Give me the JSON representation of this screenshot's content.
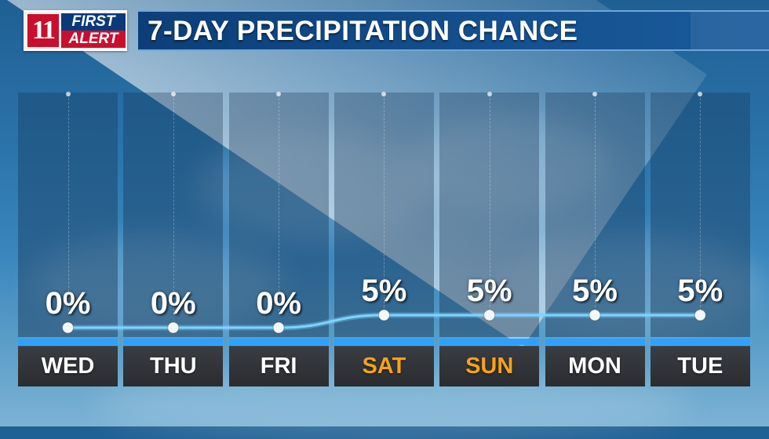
{
  "header": {
    "logo_channel": "11",
    "logo_line1": "FIRST",
    "logo_line2": "ALERT",
    "title": "7-DAY PRECIPITATION CHANCE"
  },
  "colors": {
    "weekday": "#ffffff",
    "weekend": "#f7a21b",
    "line": "#7fd3ff",
    "strip": "#2ea0ff"
  },
  "chart_data": {
    "type": "line",
    "categories": [
      "WED",
      "THU",
      "FRI",
      "SAT",
      "SUN",
      "MON",
      "TUE"
    ],
    "series": [
      {
        "values": [
          0,
          0,
          0,
          5,
          5,
          5,
          5
        ]
      }
    ],
    "data_labels": [
      "0%",
      "0%",
      "0%",
      "5%",
      "5%",
      "5%",
      "5%"
    ],
    "highlighted_categories": [
      "SAT",
      "SUN"
    ],
    "unit": "%"
  }
}
